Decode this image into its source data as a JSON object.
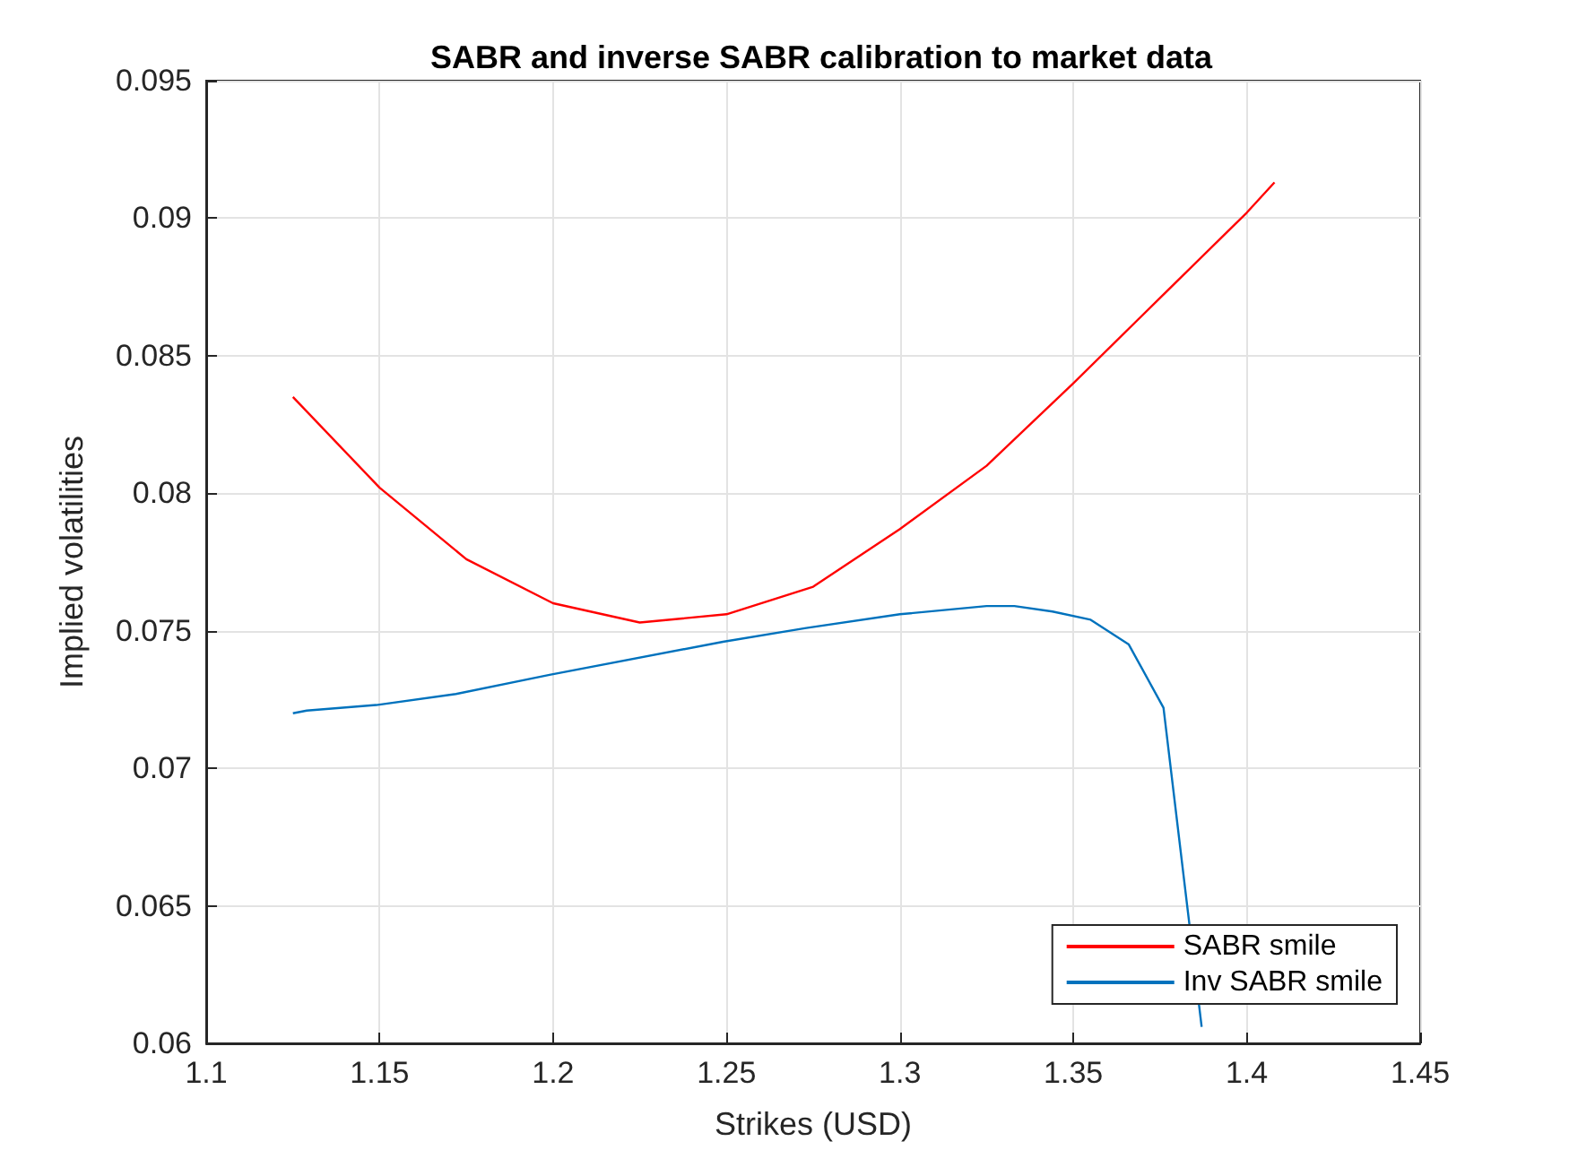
{
  "chart_data": {
    "type": "line",
    "title": "SABR and inverse SABR calibration to market data",
    "xlabel": "Strikes (USD)",
    "ylabel": "Implied volatilities",
    "xlim": [
      1.1,
      1.45
    ],
    "xticks": [
      1.1,
      1.15,
      1.2,
      1.25,
      1.3,
      1.35,
      1.4,
      1.45
    ],
    "ylim": [
      0.06,
      0.095
    ],
    "yticks": [
      0.06,
      0.065,
      0.07,
      0.075,
      0.08,
      0.085,
      0.09,
      0.095
    ],
    "grid": true,
    "legend": "bottom right",
    "marker": "none",
    "line_style": "solid",
    "series": [
      {
        "name": "SABR smile",
        "color": "#ff0000",
        "x": [
          1.125,
          1.15,
          1.175,
          1.2,
          1.225,
          1.25,
          1.275,
          1.3,
          1.325,
          1.35,
          1.375,
          1.4,
          1.408
        ],
        "values": [
          0.0835,
          0.0802,
          0.0776,
          0.076,
          0.0753,
          0.0756,
          0.0766,
          0.0787,
          0.081,
          0.084,
          0.0871,
          0.0902,
          0.0913
        ]
      },
      {
        "name": "Inv SABR smile",
        "color": "#0072bd",
        "x": [
          1.125,
          1.129,
          1.149,
          1.172,
          1.199,
          1.249,
          1.273,
          1.3,
          1.325,
          1.333,
          1.344,
          1.355,
          1.366,
          1.376,
          1.387
        ],
        "values": [
          0.072,
          0.0721,
          0.0723,
          0.0727,
          0.0734,
          0.0746,
          0.0751,
          0.0756,
          0.0759,
          0.0759,
          0.0757,
          0.0754,
          0.0745,
          0.0722,
          0.0606
        ]
      }
    ]
  }
}
